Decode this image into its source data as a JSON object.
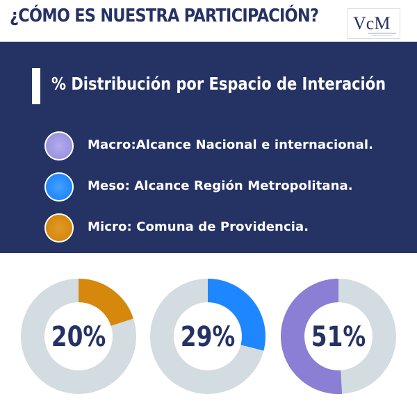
{
  "header": {
    "title": "¿CÓMO ES NUESTRA PARTICIPACIÓN?",
    "logo_text": "VcM",
    "logo_icon": "vcm-logo-icon"
  },
  "panel": {
    "section_title": "% Distribución por Espacio de Interación",
    "legend": [
      {
        "label": "Macro:Alcance Nacional e internacional.",
        "color": "#9b93df"
      },
      {
        "label": "Meso: Alcance Región Metropolitana.",
        "color": "#1e87ff"
      },
      {
        "label": "Micro: Comuna de Providencia.",
        "color": "#d6880c"
      }
    ]
  },
  "colors": {
    "navy": "#253264",
    "track": "#d3dce0"
  },
  "chart_data": {
    "type": "pie",
    "variant": "donut",
    "categories": [
      "Micro: Comuna de Providencia.",
      "Meso: Alcance Región Metropolitana.",
      "Macro:Alcance Nacional e internacional."
    ],
    "values": [
      20,
      29,
      51
    ],
    "labels": [
      "20%",
      "29%",
      "51%"
    ],
    "colors": [
      "#d6880c",
      "#1e87ff",
      "#8a7fd4"
    ]
  }
}
